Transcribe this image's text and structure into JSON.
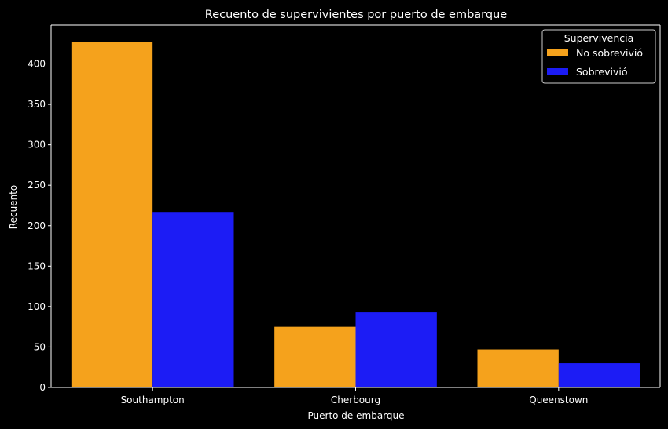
{
  "chart_data": {
    "type": "bar",
    "title": "Recuento de supervivientes por puerto de embarque",
    "xlabel": "Puerto de embarque",
    "ylabel": "Recuento",
    "categories": [
      "Southampton",
      "Cherbourg",
      "Queenstown"
    ],
    "series": [
      {
        "name": "No sobrevivió",
        "color": "#f5a21c",
        "values": [
          427,
          75,
          47
        ]
      },
      {
        "name": "Sobrevivió",
        "color": "#1c1cf5",
        "values": [
          217,
          93,
          30
        ]
      }
    ],
    "ylim": [
      0,
      448
    ],
    "yticks": [
      0,
      50,
      100,
      150,
      200,
      250,
      300,
      350,
      400
    ],
    "legend": {
      "title": "Supervivencia",
      "placement": "top-right"
    },
    "grid": false,
    "background": "#000000",
    "axis_color": "#ffffff"
  }
}
